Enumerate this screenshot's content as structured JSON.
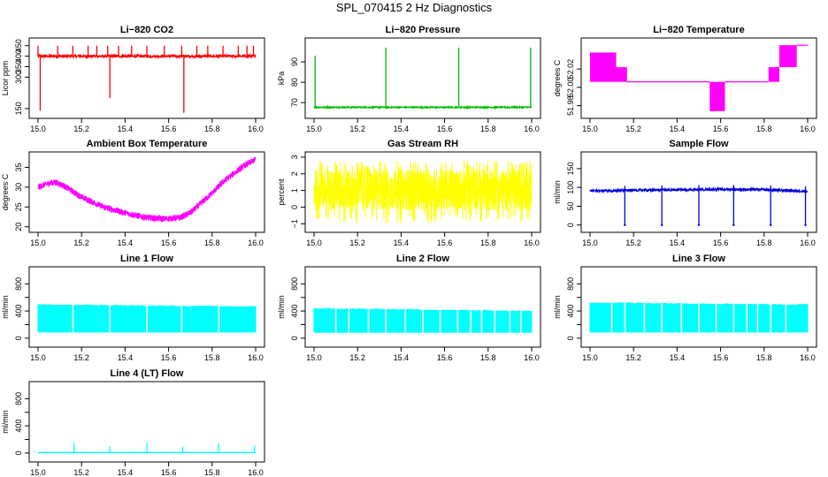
{
  "figure": {
    "title": "SPL_070415  2 Hz Diagnostics"
  },
  "chart_data": [
    {
      "id": "co2",
      "type": "line",
      "title": "Li−820 CO2",
      "ylabel": "Licor ppm",
      "color": "#ff0000",
      "xlim": [
        15.0,
        16.0
      ],
      "ylim": [
        120,
        470
      ],
      "xticks": [
        15.0,
        15.2,
        15.4,
        15.6,
        15.8,
        16.0
      ],
      "xtick_labels": [
        "15.0",
        "15.2",
        "15.4",
        "15.6",
        "15.8",
        "16.0"
      ],
      "yticks": [
        150,
        300,
        350,
        400,
        450
      ],
      "ytick_labels": [
        "150",
        "300",
        "350",
        "400",
        "450"
      ],
      "pattern": "spikes",
      "baseline": 400,
      "noise": 6,
      "spikes": [
        [
          15.0,
          450
        ],
        [
          15.01,
          140
        ],
        [
          15.09,
          450
        ],
        [
          15.16,
          450
        ],
        [
          15.23,
          450
        ],
        [
          15.27,
          450
        ],
        [
          15.32,
          450
        ],
        [
          15.33,
          200
        ],
        [
          15.37,
          450
        ],
        [
          15.43,
          450
        ],
        [
          15.5,
          450
        ],
        [
          15.58,
          450
        ],
        [
          15.66,
          450
        ],
        [
          15.67,
          130
        ],
        [
          15.73,
          450
        ],
        [
          15.78,
          450
        ],
        [
          15.85,
          450
        ],
        [
          15.92,
          450
        ],
        [
          15.96,
          450
        ],
        [
          15.99,
          450
        ]
      ]
    },
    {
      "id": "pressure",
      "type": "line",
      "title": "Li−820 Pressure",
      "ylabel": "kPa",
      "color": "#00bb00",
      "xlim": [
        15.0,
        16.0
      ],
      "ylim": [
        64,
        100
      ],
      "xticks": [
        15.0,
        15.2,
        15.4,
        15.6,
        15.8,
        16.0
      ],
      "xtick_labels": [
        "15.0",
        "15.2",
        "15.4",
        "15.6",
        "15.8",
        "16.0"
      ],
      "yticks": [
        70,
        80,
        90
      ],
      "ytick_labels": [
        "70",
        "80",
        "90"
      ],
      "pattern": "spikes",
      "baseline": 67.7,
      "noise": 0.3,
      "spikes": [
        [
          15.005,
          93
        ],
        [
          15.33,
          97
        ],
        [
          15.665,
          97
        ],
        [
          15.995,
          97
        ]
      ]
    },
    {
      "id": "temperature",
      "type": "step",
      "title": "Li−820 Temperature",
      "ylabel": "degrees C",
      "color": "#ff00ff",
      "xlim": [
        15.0,
        16.0
      ],
      "ylim": [
        51.97,
        52.05
      ],
      "xticks": [
        15.0,
        15.2,
        15.4,
        15.6,
        15.8,
        16.0
      ],
      "xtick_labels": [
        "15.0",
        "15.2",
        "15.4",
        "15.6",
        "15.8",
        "16.0"
      ],
      "yticks": [
        51.98,
        52.0,
        52.02
      ],
      "ytick_labels": [
        "51.98",
        "52.00",
        "52.02"
      ],
      "pattern": "quantized",
      "levels": [
        51.998,
        52.006,
        52.014,
        52.022,
        52.03,
        52.038,
        52.046
      ],
      "segments": [
        [
          15.0,
          15.12,
          52.038,
          52.006
        ],
        [
          15.12,
          15.17,
          52.022,
          52.006
        ],
        [
          15.17,
          15.55,
          52.006,
          52.006
        ],
        [
          15.55,
          15.62,
          52.006,
          51.974
        ],
        [
          15.62,
          15.82,
          52.006,
          52.006
        ],
        [
          15.82,
          15.87,
          52.022,
          52.006
        ],
        [
          15.87,
          15.95,
          52.046,
          52.022
        ],
        [
          15.95,
          16.0,
          52.046,
          52.046
        ]
      ]
    },
    {
      "id": "ambient",
      "type": "line",
      "title": "Ambient Box Temperature",
      "ylabel": "degrees C",
      "color": "#ff00ff",
      "xlim": [
        15.0,
        16.0
      ],
      "ylim": [
        19.5,
        38
      ],
      "xticks": [
        15.0,
        15.2,
        15.4,
        15.6,
        15.8,
        16.0
      ],
      "xtick_labels": [
        "15.0",
        "15.2",
        "15.4",
        "15.6",
        "15.8",
        "16.0"
      ],
      "yticks": [
        20,
        25,
        30,
        35
      ],
      "ytick_labels": [
        "20",
        "25",
        "30",
        "35"
      ],
      "pattern": "curve",
      "noise": 0.8,
      "points": [
        [
          15.0,
          30
        ],
        [
          15.05,
          31
        ],
        [
          15.08,
          31.3
        ],
        [
          15.12,
          30.3
        ],
        [
          15.2,
          27.5
        ],
        [
          15.3,
          25
        ],
        [
          15.4,
          23.5
        ],
        [
          15.5,
          22.3
        ],
        [
          15.58,
          22
        ],
        [
          15.65,
          22.3
        ],
        [
          15.7,
          23.5
        ],
        [
          15.75,
          26
        ],
        [
          15.8,
          28.5
        ],
        [
          15.85,
          31.3
        ],
        [
          15.9,
          33.5
        ],
        [
          15.95,
          35.5
        ],
        [
          16.0,
          37
        ]
      ]
    },
    {
      "id": "rh",
      "type": "line",
      "title": "Gas Stream RH",
      "ylabel": "percent",
      "color": "#ffff00",
      "xlim": [
        15.0,
        16.0
      ],
      "ylim": [
        -1.3,
        3.1
      ],
      "xticks": [
        15.0,
        15.2,
        15.4,
        15.6,
        15.8,
        16.0
      ],
      "xtick_labels": [
        "15.0",
        "15.2",
        "15.4",
        "15.6",
        "15.8",
        "16.0"
      ],
      "yticks": [
        -1,
        0,
        1,
        2,
        3
      ],
      "ytick_labels": [
        "−1",
        "0",
        "1",
        "2",
        "3"
      ],
      "pattern": "band",
      "center": 1.2,
      "low": -0.2,
      "high": 2.3,
      "extreme_low": -1.0,
      "extreme_high": 2.8
    },
    {
      "id": "sample_flow",
      "type": "line",
      "title": "Sample Flow",
      "ylabel": "ml/min",
      "color": "#0000dd",
      "xlim": [
        15.0,
        16.0
      ],
      "ylim": [
        -10,
        185
      ],
      "xticks": [
        15.0,
        15.2,
        15.4,
        15.6,
        15.8,
        16.0
      ],
      "xtick_labels": [
        "15.0",
        "15.2",
        "15.4",
        "15.6",
        "15.8",
        "16.0"
      ],
      "yticks": [
        0,
        50,
        100,
        150
      ],
      "ytick_labels": [
        "0",
        "50",
        "100",
        "150"
      ],
      "pattern": "dips",
      "noise": 3,
      "baseline_points": [
        [
          15.0,
          91
        ],
        [
          15.3,
          93
        ],
        [
          15.6,
          95
        ],
        [
          15.8,
          94
        ],
        [
          16.0,
          90
        ]
      ],
      "dips": [
        [
          15.16,
          0
        ],
        [
          15.33,
          0
        ],
        [
          15.5,
          0
        ],
        [
          15.66,
          0
        ],
        [
          15.83,
          0
        ],
        [
          15.99,
          0
        ]
      ]
    },
    {
      "id": "line1",
      "type": "line",
      "title": "Line 1 Flow",
      "ylabel": "ml/min",
      "color": "#00ffff",
      "xlim": [
        15.0,
        16.0
      ],
      "ylim": [
        -80,
        1000
      ],
      "xticks": [
        15.0,
        15.2,
        15.4,
        15.6,
        15.8,
        16.0
      ],
      "xtick_labels": [
        "15.0",
        "15.2",
        "15.4",
        "15.6",
        "15.8",
        "16.0"
      ],
      "yticks": [
        0,
        200,
        400,
        600,
        800
      ],
      "ytick_labels": [
        "0",
        "",
        "400",
        "",
        "800"
      ],
      "pattern": "block",
      "low": 90,
      "high_start": 490,
      "high_end": 460,
      "gaps": [
        15.16,
        15.33,
        15.5,
        15.66,
        15.83
      ]
    },
    {
      "id": "line2",
      "type": "line",
      "title": "Line 2 Flow",
      "ylabel": "ml/min",
      "color": "#00ffff",
      "xlim": [
        15.0,
        16.0
      ],
      "ylim": [
        -80,
        1000
      ],
      "xticks": [
        15.0,
        15.2,
        15.4,
        15.6,
        15.8,
        16.0
      ],
      "xtick_labels": [
        "15.0",
        "15.2",
        "15.4",
        "15.6",
        "15.8",
        "16.0"
      ],
      "yticks": [
        0,
        200,
        400,
        600,
        800
      ],
      "ytick_labels": [
        "0",
        "",
        "400",
        "",
        "800"
      ],
      "pattern": "block",
      "low": 85,
      "high_start": 435,
      "high_end": 395,
      "gaps": [
        15.1,
        15.16,
        15.25,
        15.33,
        15.42,
        15.5,
        15.58,
        15.66,
        15.72,
        15.77,
        15.83,
        15.9,
        15.95
      ]
    },
    {
      "id": "line3",
      "type": "line",
      "title": "Line 3 Flow",
      "ylabel": "ml/min",
      "color": "#00ffff",
      "xlim": [
        15.0,
        16.0
      ],
      "ylim": [
        -80,
        1000
      ],
      "xticks": [
        15.0,
        15.2,
        15.4,
        15.6,
        15.8,
        16.0
      ],
      "xtick_labels": [
        "15.0",
        "15.2",
        "15.4",
        "15.6",
        "15.8",
        "16.0"
      ],
      "yticks": [
        0,
        200,
        400,
        600,
        800
      ],
      "ytick_labels": [
        "0",
        "",
        "400",
        "",
        "800"
      ],
      "pattern": "block",
      "low": 90,
      "high_start": 520,
      "high_end": 490,
      "gaps": [
        15.1,
        15.16,
        15.25,
        15.33,
        15.42,
        15.5,
        15.58,
        15.66,
        15.72,
        15.77,
        15.83,
        15.9
      ]
    },
    {
      "id": "line4",
      "type": "line",
      "title": "Line 4 (LT) Flow",
      "ylabel": "ml/min",
      "color": "#00ffff",
      "xlim": [
        15.0,
        16.0
      ],
      "ylim": [
        -80,
        1000
      ],
      "xticks": [
        15.0,
        15.2,
        15.4,
        15.6,
        15.8,
        16.0
      ],
      "xtick_labels": [
        "15.0",
        "15.2",
        "15.4",
        "15.6",
        "15.8",
        "16.0"
      ],
      "yticks": [
        0,
        200,
        400,
        600,
        800
      ],
      "ytick_labels": [
        "0",
        "",
        "400",
        "",
        "800"
      ],
      "pattern": "spikes",
      "baseline": 8,
      "noise": 2,
      "spikes": [
        [
          15.165,
          150
        ],
        [
          15.33,
          95
        ],
        [
          15.5,
          155
        ],
        [
          15.665,
          95
        ],
        [
          15.83,
          145
        ],
        [
          15.995,
          110
        ]
      ]
    }
  ]
}
